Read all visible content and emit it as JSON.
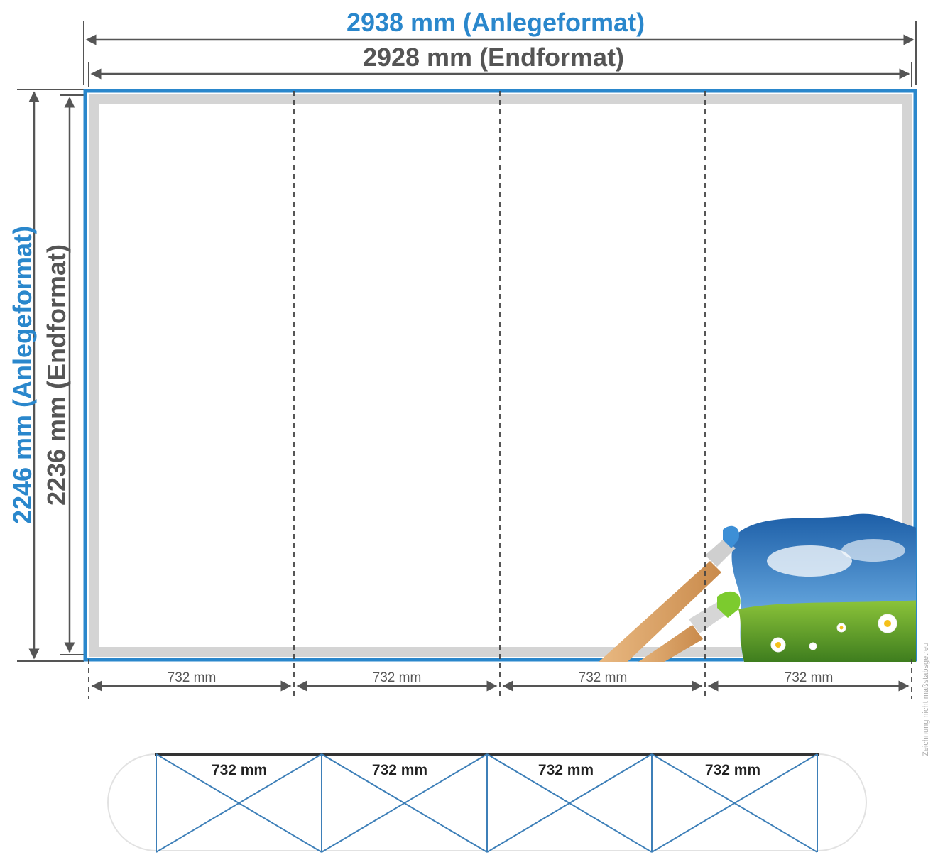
{
  "width_anlege": "2938 mm (Anlegeformat)",
  "width_end": "2928 mm (Endformat)",
  "height_anlege": "2246 mm (Anlegeformat)",
  "height_end": "2236 mm (Endformat)",
  "panels": [
    "732 mm",
    "732 mm",
    "732 mm",
    "732 mm"
  ],
  "frame_panels": [
    "732 mm",
    "732 mm",
    "732 mm",
    "732 mm"
  ],
  "note": "Zeichnung nicht maßstabsgetreu",
  "colors": {
    "accent_blue": "#2a87cc",
    "dimension_gray": "#555555",
    "bleed_gray": "#d4d4d4",
    "frame_blue": "#3d7fb8"
  },
  "decoration": "paintbrush-landscape-illustration"
}
